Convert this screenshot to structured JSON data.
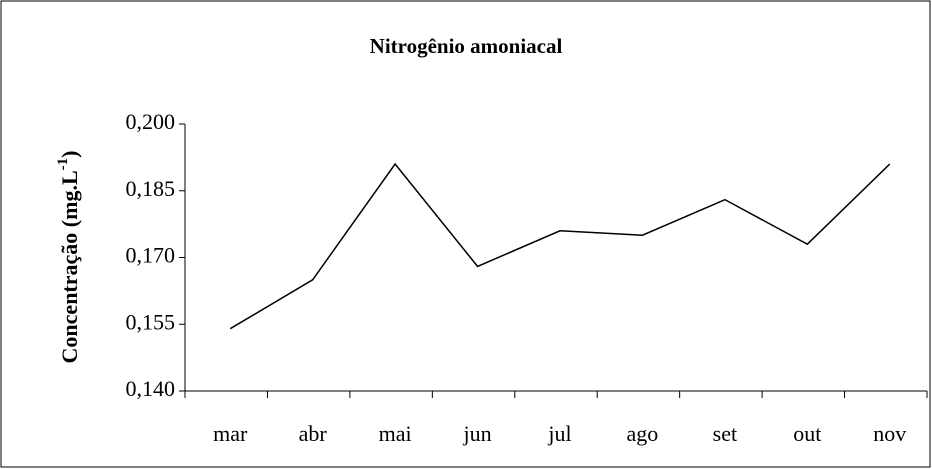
{
  "chart_data": {
    "type": "line",
    "title": "Nitrogênio amoniacal",
    "y_label": {
      "text": "Concentração (mg.L",
      "superscript": "-1",
      "close": ")"
    },
    "categories": [
      "mar",
      "abr",
      "mai",
      "jun",
      "jul",
      "ago",
      "set",
      "out",
      "nov"
    ],
    "values": [
      0.154,
      0.165,
      0.191,
      0.168,
      0.176,
      0.175,
      0.183,
      0.173,
      0.191
    ],
    "color": "#000000",
    "ylim": [
      0.14,
      0.2
    ],
    "yticks": [
      {
        "value": 0.14,
        "label": "0,140"
      },
      {
        "value": 0.155,
        "label": "0,155"
      },
      {
        "value": 0.17,
        "label": "0,170"
      },
      {
        "value": 0.185,
        "label": "0,185"
      },
      {
        "value": 0.2,
        "label": "0,200"
      }
    ],
    "grid": false
  }
}
